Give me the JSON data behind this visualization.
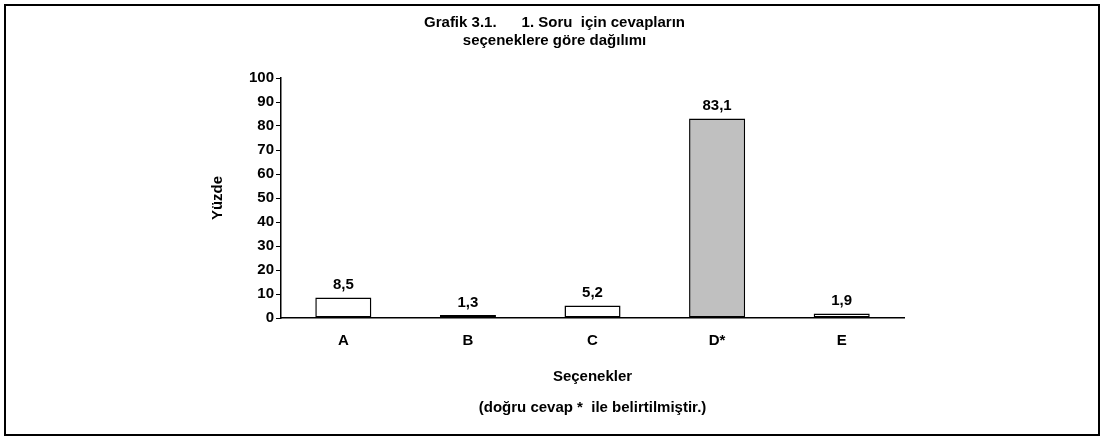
{
  "chart_data": {
    "type": "bar",
    "title": [
      "Grafik 3.1.      1. Soru  için cevapların",
      "seçeneklere göre dağılımı"
    ],
    "xlabel": "Seçenekler",
    "ylabel": "Yüzde",
    "annotations": [
      "(doğru cevap *  ile belirtilmiştir.)"
    ],
    "categories": [
      "A",
      "B",
      "C",
      "D*",
      "E"
    ],
    "values": [
      8.5,
      1.3,
      5.2,
      83.1,
      1.9
    ],
    "value_labels": [
      "8,5",
      "1,3",
      "5,2",
      "83,1",
      "1,9"
    ],
    "colors": [
      "#ffffff",
      "#000000",
      "#ffffff",
      "#c0c0c0",
      "#ffffff"
    ],
    "ylim": [
      0,
      100
    ],
    "yticks": [
      0,
      10,
      20,
      30,
      40,
      50,
      60,
      70,
      80,
      90,
      100
    ],
    "grid": false,
    "legend": false
  }
}
